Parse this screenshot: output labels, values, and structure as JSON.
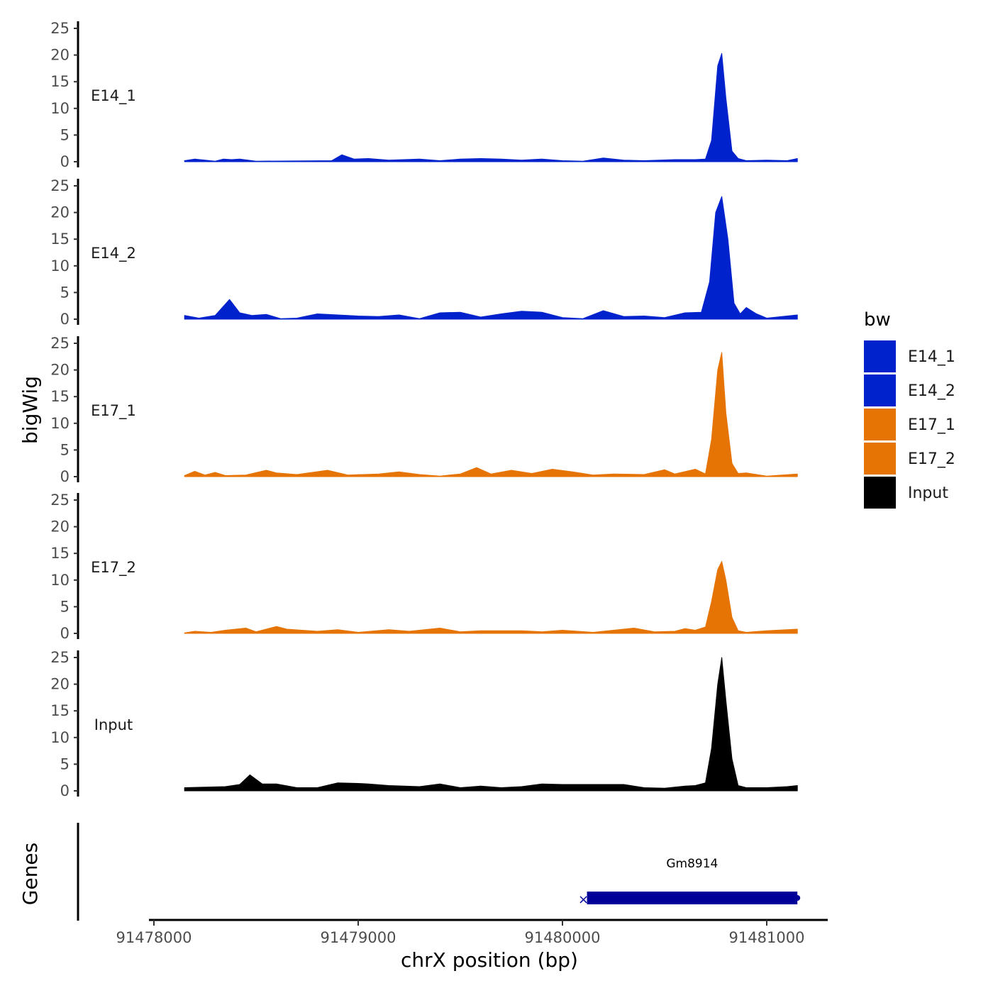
{
  "chart_data": {
    "type": "area",
    "title": "",
    "xlabel": "chrX position (bp)",
    "ylabel": "bigWig",
    "xlim": [
      91477990,
      91481300
    ],
    "ylim": [
      0,
      26
    ],
    "x_ticks": [
      91478000,
      91479000,
      91480000,
      91481000
    ],
    "x_tick_labels": [
      "91478000",
      "91479000",
      "91480000",
      "91481000"
    ],
    "y_ticks": [
      0,
      5,
      10,
      15,
      20,
      25
    ],
    "y_tick_labels": [
      "0",
      "5",
      "10",
      "15",
      "20",
      "25"
    ],
    "legend": {
      "title": "bw",
      "position": "right",
      "entries": [
        {
          "label": "E14_1",
          "color": "#0022CC"
        },
        {
          "label": "E14_2",
          "color": "#0022CC"
        },
        {
          "label": "E17_1",
          "color": "#E57405"
        },
        {
          "label": "E17_2",
          "color": "#E57405"
        },
        {
          "label": "Input",
          "color": "#000000"
        }
      ]
    },
    "series": [
      {
        "name": "E14_1",
        "color": "#0022CC",
        "x": [
          91478150,
          91478200,
          91478250,
          91478300,
          91478340,
          91478380,
          91478420,
          91478500,
          91478870,
          91478920,
          91478980,
          91479050,
          91479150,
          91479300,
          91479400,
          91479500,
          91479600,
          91479700,
          91479800,
          91479900,
          91480000,
          91480100,
          91480200,
          91480300,
          91480400,
          91480550,
          91480650,
          91480700,
          91480730,
          91480760,
          91480780,
          91480800,
          91480830,
          91480860,
          91480900,
          91481000,
          91481100,
          91481150
        ],
        "y": [
          0.2,
          0.5,
          0.3,
          0.1,
          0.5,
          0.4,
          0.5,
          0.1,
          0.2,
          1.3,
          0.5,
          0.6,
          0.3,
          0.5,
          0.2,
          0.5,
          0.6,
          0.5,
          0.3,
          0.5,
          0.2,
          0.1,
          0.7,
          0.3,
          0.2,
          0.4,
          0.4,
          0.5,
          4,
          18,
          20.3,
          12,
          2,
          0.6,
          0.2,
          0.3,
          0.2,
          0.6
        ]
      },
      {
        "name": "E14_2",
        "color": "#0022CC",
        "x": [
          91478150,
          91478220,
          91478300,
          91478370,
          91478420,
          91478480,
          91478550,
          91478620,
          91478700,
          91478800,
          91478900,
          91479000,
          91479100,
          91479200,
          91479300,
          91479400,
          91479500,
          91479600,
          91479700,
          91479800,
          91479900,
          91480000,
          91480100,
          91480200,
          91480300,
          91480400,
          91480500,
          91480600,
          91480680,
          91480720,
          91480750,
          91480780,
          91480810,
          91480840,
          91480870,
          91480900,
          91480950,
          91481000,
          91481150
        ],
        "y": [
          0.7,
          0.2,
          0.7,
          3.7,
          1.2,
          0.7,
          0.9,
          0.1,
          0.2,
          1.0,
          0.8,
          0.6,
          0.5,
          0.8,
          0.1,
          1.2,
          1.3,
          0.4,
          1.0,
          1.5,
          1.3,
          0.3,
          0.1,
          1.6,
          0.5,
          0.6,
          0.3,
          1.2,
          1.3,
          7,
          20,
          23,
          15,
          3,
          1.0,
          2.2,
          1.0,
          0.2,
          0.8
        ]
      },
      {
        "name": "E17_1",
        "color": "#E57405",
        "x": [
          91478150,
          91478200,
          91478250,
          91478300,
          91478350,
          91478450,
          91478550,
          91478600,
          91478700,
          91478850,
          91478950,
          91479100,
          91479200,
          91479300,
          91479400,
          91479500,
          91479580,
          91479650,
          91479750,
          91479850,
          91479950,
          91480050,
          91480150,
          91480250,
          91480400,
          91480500,
          91480550,
          91480650,
          91480700,
          91480730,
          91480760,
          91480780,
          91480800,
          91480830,
          91480860,
          91480900,
          91481000,
          91481150
        ],
        "y": [
          0.2,
          1.0,
          0.3,
          0.8,
          0.2,
          0.3,
          1.2,
          0.7,
          0.4,
          1.2,
          0.3,
          0.5,
          0.9,
          0.4,
          0.1,
          0.5,
          1.7,
          0.5,
          1.2,
          0.6,
          1.4,
          0.9,
          0.3,
          0.5,
          0.4,
          1.3,
          0.5,
          1.4,
          0.5,
          7,
          20,
          23.3,
          12,
          2.5,
          0.6,
          0.7,
          0.1,
          0.5
        ]
      },
      {
        "name": "E17_2",
        "color": "#E57405",
        "x": [
          91478150,
          91478200,
          91478280,
          91478350,
          91478450,
          91478500,
          91478600,
          91478650,
          91478800,
          91478900,
          91479000,
          91479150,
          91479250,
          91479400,
          91479500,
          91479600,
          91479700,
          91479800,
          91479900,
          91480000,
          91480150,
          91480250,
          91480350,
          91480450,
          91480550,
          91480600,
          91480650,
          91480700,
          91480730,
          91480760,
          91480780,
          91480800,
          91480830,
          91480860,
          91480900,
          91481000,
          91481100,
          91481150
        ],
        "y": [
          0.1,
          0.4,
          0.2,
          0.6,
          1.0,
          0.3,
          1.3,
          0.8,
          0.4,
          0.7,
          0.2,
          0.7,
          0.4,
          1.0,
          0.3,
          0.5,
          0.5,
          0.5,
          0.3,
          0.6,
          0.2,
          0.6,
          1.0,
          0.3,
          0.4,
          0.9,
          0.6,
          1.2,
          6,
          12,
          13.5,
          10,
          3,
          0.5,
          0.2,
          0.5,
          0.7,
          0.8
        ]
      },
      {
        "name": "Input",
        "color": "#000000",
        "x": [
          91478150,
          91478250,
          91478350,
          91478420,
          91478470,
          91478530,
          91478600,
          91478700,
          91478800,
          91478900,
          91479000,
          91479050,
          91479150,
          91479300,
          91479400,
          91479500,
          91479600,
          91479700,
          91479800,
          91479900,
          91480000,
          91480100,
          91480200,
          91480300,
          91480400,
          91480500,
          91480600,
          91480650,
          91480700,
          91480730,
          91480760,
          91480780,
          91480800,
          91480830,
          91480860,
          91480900,
          91481000,
          91481100,
          91481150
        ],
        "y": [
          0.6,
          0.7,
          0.8,
          1.2,
          3.0,
          1.3,
          1.3,
          0.6,
          0.6,
          1.5,
          1.4,
          1.3,
          1.0,
          0.8,
          1.3,
          0.6,
          0.9,
          0.6,
          0.8,
          1.3,
          1.2,
          1.2,
          1.2,
          1.2,
          0.6,
          0.5,
          0.9,
          1.0,
          1.5,
          8,
          20,
          25,
          17,
          6,
          1.0,
          0.6,
          0.6,
          0.8,
          1.0
        ]
      }
    ],
    "genes_track": {
      "label": "Genes",
      "genes": [
        {
          "name": "Gm8914",
          "start": 91480120,
          "end": 91481150,
          "strand": "-",
          "color": "#000099"
        }
      ]
    }
  }
}
